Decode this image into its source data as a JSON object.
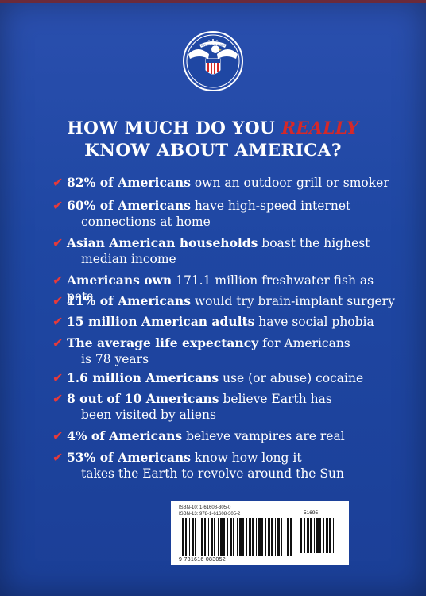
{
  "headline": {
    "line1_before": "HOW MUCH DO YOU ",
    "line1_emphasis": "REALLY",
    "line2": "KNOW ABOUT AMERICA?"
  },
  "seal": {
    "icon": "eagle-seal-icon",
    "banner_text": "E PLURIBUS UNUM"
  },
  "check_icon": "check-icon",
  "facts": [
    {
      "lead": "82% of Americans",
      "rest": " own an outdoor grill or smoker",
      "line2": ""
    },
    {
      "lead": "60% of Americans",
      "rest": " have high-speed internet",
      "line2": "connections at home"
    },
    {
      "lead": "Asian American households",
      "rest": " boast the highest",
      "line2": "median income"
    },
    {
      "lead": "Americans own",
      "rest": " 171.1 million freshwater fish as pets",
      "line2": ""
    },
    {
      "lead": "11% of Americans",
      "rest": " would try brain-implant surgery",
      "line2": ""
    },
    {
      "lead": "15 million American adults",
      "rest": " have social phobia",
      "line2": ""
    },
    {
      "lead": "The average life expectancy",
      "rest": " for Americans",
      "line2": "is 78 years"
    },
    {
      "lead": "1.6 million Americans",
      "rest": " use (or abuse) cocaine",
      "line2": ""
    },
    {
      "lead": "8 out of 10 Americans",
      "rest": " believe Earth has",
      "line2": "been visited by aliens"
    },
    {
      "lead": "4% of Americans",
      "rest": " believe vampires are real",
      "line2": ""
    },
    {
      "lead": "53% of Americans",
      "rest": " know how long it",
      "line2": "takes the Earth to revolve around the Sun"
    }
  ],
  "barcode": {
    "isbn10": "ISBN-10: 1-61608-305-0",
    "isbn13": "ISBN-13: 978-1-61608-305-2",
    "price_code": "51695",
    "digits": "9 781616 083052"
  },
  "colors": {
    "background": "#1f47a3",
    "accent_red": "#d62828",
    "text": "#ffffff"
  }
}
